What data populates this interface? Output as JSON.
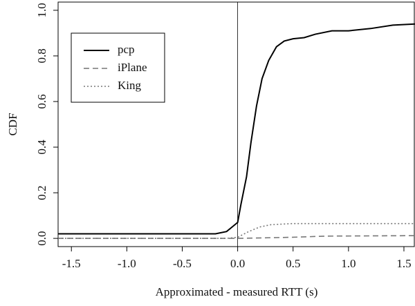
{
  "chart_data": {
    "type": "line",
    "x_label": "Approximated - measured RTT (s)",
    "y_label": "CDF",
    "xlim": [
      -1.62,
      1.6
    ],
    "ylim": [
      -0.036,
      1.036
    ],
    "xticks": [
      -1.5,
      {
        "value": -1.0,
        "label": "-1.0"
      },
      -0.5,
      {
        "value": 0,
        "label": "0.0"
      },
      0.5,
      {
        "value": 1.0,
        "label": "1.0"
      },
      1.5
    ],
    "yticks": [
      {
        "value": 0,
        "label": "0.0"
      },
      0.2,
      0.4,
      0.6,
      0.8,
      {
        "value": 1.0,
        "label": "1.0"
      }
    ],
    "vline": 0,
    "legend": "upper left",
    "series": [
      {
        "name": "pcp",
        "color": "#000000",
        "dash": "solid",
        "x": [
          -1.62,
          -0.2,
          -0.1,
          -0.05,
          0,
          0.03,
          0.08,
          0.12,
          0.17,
          0.22,
          0.28,
          0.35,
          0.42,
          0.5,
          0.6,
          0.7,
          0.85,
          1.0,
          1.2,
          1.4,
          1.6
        ],
        "values": [
          0.02,
          0.02,
          0.03,
          0.05,
          0.07,
          0.15,
          0.27,
          0.42,
          0.58,
          0.7,
          0.78,
          0.84,
          0.865,
          0.875,
          0.88,
          0.895,
          0.91,
          0.91,
          0.92,
          0.935,
          0.94
        ]
      },
      {
        "name": "iPlane",
        "color": "#777777",
        "dash": "dashed",
        "x": [
          -1.62,
          0,
          0.5,
          0.8,
          1.6
        ],
        "values": [
          0,
          0,
          0.005,
          0.01,
          0.012
        ]
      },
      {
        "name": "King",
        "color": "#777777",
        "dash": "dotted",
        "x": [
          -1.62,
          -0.1,
          0,
          0.1,
          0.2,
          0.3,
          0.5,
          1.6
        ],
        "values": [
          0,
          0,
          0.005,
          0.03,
          0.05,
          0.06,
          0.065,
          0.065
        ]
      }
    ]
  }
}
